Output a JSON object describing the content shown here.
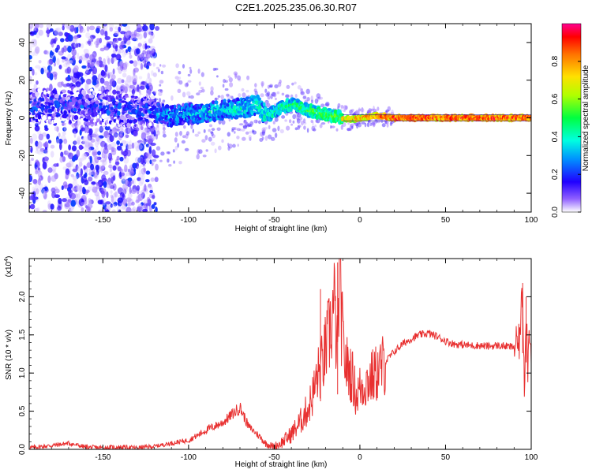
{
  "title": "C2E1.2025.235.06.30.R07",
  "chart_data": [
    {
      "type": "heatmap",
      "title": "C2E1.2025.235.06.30.R07",
      "xlabel": "Height of straight line (km)",
      "ylabel": "Frequency (Hz)",
      "xlim": [
        -193,
        100
      ],
      "ylim": [
        -50,
        50
      ],
      "xticks": [
        -150,
        -100,
        -50,
        0,
        50,
        100
      ],
      "yticks": [
        -40,
        -20,
        0,
        20,
        40
      ],
      "colorbar": {
        "label": "Normalized spectral amplitude",
        "range": [
          0,
          1
        ],
        "ticks": [
          "0.0",
          "0.2",
          "0.4",
          "0.6",
          "0.8"
        ]
      },
      "ridge": {
        "description": "frequency centroid of the dominant signal vs height",
        "x": [
          -190,
          -175,
          -160,
          -145,
          -130,
          -120,
          -110,
          -100,
          -90,
          -80,
          -70,
          -60,
          -55,
          -50,
          -45,
          -40,
          -35,
          -30,
          -25,
          -20,
          -15,
          -10,
          -5,
          0,
          10,
          20,
          40,
          60,
          80,
          95,
          100
        ],
        "y": [
          6,
          7,
          6,
          5,
          4,
          3,
          1,
          2,
          3,
          4,
          5,
          7,
          1,
          3,
          6,
          7,
          6,
          4,
          3,
          2,
          1,
          0,
          -1,
          0,
          1,
          0,
          0,
          0,
          0,
          0,
          0
        ]
      }
    },
    {
      "type": "line",
      "xlabel": "Height of straight line (km)",
      "ylabel": "SNR (10 * v/v)",
      "y_scale_label": "(x10",
      "y_scale_exponent": "4",
      "y_scale_suffix": ")",
      "xlim": [
        -193,
        100
      ],
      "ylim": [
        0,
        2.5
      ],
      "xticks": [
        -150,
        -100,
        -50,
        0,
        50,
        100
      ],
      "yticks": [
        "0.0",
        "0.5",
        "1.0",
        "1.5",
        "2.0"
      ],
      "series": [
        {
          "name": "SNR",
          "color": "#e83030",
          "x": [
            -193,
            -180,
            -170,
            -160,
            -150,
            -140,
            -130,
            -120,
            -110,
            -100,
            -95,
            -90,
            -85,
            -80,
            -75,
            -70,
            -67,
            -65,
            -60,
            -55,
            -50,
            -45,
            -40,
            -35,
            -30,
            -27,
            -25,
            -22,
            -20,
            -17,
            -15,
            -13,
            -12,
            -10,
            -8,
            -5,
            -2,
            0,
            5,
            10,
            15,
            20,
            25,
            30,
            35,
            40,
            45,
            50,
            55,
            60,
            65,
            70,
            75,
            80,
            85,
            90,
            93,
            95,
            96,
            97,
            98,
            99,
            100
          ],
          "y": [
            0.02,
            0.05,
            0.08,
            0.03,
            0.02,
            0.03,
            0.02,
            0.04,
            0.08,
            0.12,
            0.18,
            0.25,
            0.3,
            0.35,
            0.45,
            0.55,
            0.4,
            0.3,
            0.2,
            0.08,
            0.03,
            0.1,
            0.2,
            0.35,
            0.55,
            0.75,
            0.95,
            1.1,
            1.3,
            1.6,
            1.9,
            1.2,
            2.3,
            1.4,
            1.1,
            1.0,
            0.7,
            0.8,
            0.9,
            1.0,
            1.15,
            1.28,
            1.38,
            1.45,
            1.5,
            1.52,
            1.48,
            1.42,
            1.38,
            1.37,
            1.36,
            1.36,
            1.35,
            1.36,
            1.35,
            1.34,
            1.4,
            2.1,
            0.8,
            1.9,
            1.1,
            1.6,
            1.35
          ],
          "peaks": [
            {
              "x": -13,
              "y": 2.45
            },
            {
              "x": -23,
              "y": 2.1
            },
            {
              "x": 95,
              "y": 2.18
            },
            {
              "x": 97,
              "y": 2.0
            }
          ]
        }
      ]
    }
  ]
}
